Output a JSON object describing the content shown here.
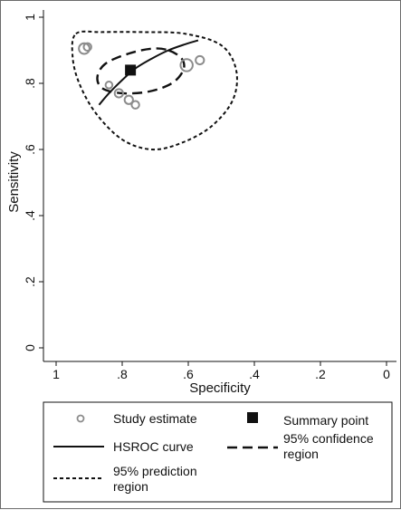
{
  "chart_data": {
    "type": "scatter",
    "xlabel": "Specificity",
    "ylabel": "Sensitivity",
    "xlim": [
      1,
      0
    ],
    "ylim": [
      0,
      1
    ],
    "x_ticks": [
      {
        "value": 1,
        "label": "1"
      },
      {
        "value": 0.8,
        "label": ".8"
      },
      {
        "value": 0.6,
        "label": ".6"
      },
      {
        "value": 0.4,
        "label": ".4"
      },
      {
        "value": 0.2,
        "label": ".2"
      },
      {
        "value": 0,
        "label": "0"
      }
    ],
    "y_ticks": [
      {
        "value": 0,
        "label": "0"
      },
      {
        "value": 0.2,
        "label": ".2"
      },
      {
        "value": 0.4,
        "label": ".4"
      },
      {
        "value": 0.6,
        "label": ".6"
      },
      {
        "value": 0.8,
        "label": ".8"
      },
      {
        "value": 1,
        "label": "1"
      }
    ],
    "grid": false,
    "study_estimates": [
      {
        "specificity": 0.915,
        "sensitivity": 0.905,
        "weight": 1.4
      },
      {
        "specificity": 0.905,
        "sensitivity": 0.91,
        "weight": 1.0
      },
      {
        "specificity": 0.84,
        "sensitivity": 0.795,
        "weight": 0.9
      },
      {
        "specificity": 0.81,
        "sensitivity": 0.77,
        "weight": 1.1
      },
      {
        "specificity": 0.78,
        "sensitivity": 0.75,
        "weight": 1.1
      },
      {
        "specificity": 0.76,
        "sensitivity": 0.735,
        "weight": 1.0
      },
      {
        "specificity": 0.605,
        "sensitivity": 0.855,
        "weight": 1.6
      },
      {
        "specificity": 0.565,
        "sensitivity": 0.87,
        "weight": 1.1
      }
    ],
    "summary_point": {
      "specificity": 0.775,
      "sensitivity": 0.84
    },
    "hsroc_curve": [
      {
        "specificity": 0.87,
        "sensitivity": 0.735
      },
      {
        "specificity": 0.84,
        "sensitivity": 0.77
      },
      {
        "specificity": 0.8,
        "sensitivity": 0.81
      },
      {
        "specificity": 0.76,
        "sensitivity": 0.845
      },
      {
        "specificity": 0.71,
        "sensitivity": 0.875
      },
      {
        "specificity": 0.66,
        "sensitivity": 0.9
      },
      {
        "specificity": 0.61,
        "sensitivity": 0.918
      },
      {
        "specificity": 0.57,
        "sensitivity": 0.93
      }
    ],
    "confidence_region": [
      {
        "specificity": 0.66,
        "sensitivity": 0.9
      },
      {
        "specificity": 0.62,
        "sensitivity": 0.875
      },
      {
        "specificity": 0.615,
        "sensitivity": 0.84
      },
      {
        "specificity": 0.65,
        "sensitivity": 0.8
      },
      {
        "specificity": 0.72,
        "sensitivity": 0.775
      },
      {
        "specificity": 0.8,
        "sensitivity": 0.77
      },
      {
        "specificity": 0.86,
        "sensitivity": 0.785
      },
      {
        "specificity": 0.875,
        "sensitivity": 0.82
      },
      {
        "specificity": 0.85,
        "sensitivity": 0.86
      },
      {
        "specificity": 0.78,
        "sensitivity": 0.89
      },
      {
        "specificity": 0.71,
        "sensitivity": 0.905
      }
    ],
    "prediction_region": [
      {
        "specificity": 0.94,
        "sensitivity": 0.95
      },
      {
        "specificity": 0.86,
        "sensitivity": 0.955
      },
      {
        "specificity": 0.74,
        "sensitivity": 0.955
      },
      {
        "specificity": 0.61,
        "sensitivity": 0.95
      },
      {
        "specificity": 0.5,
        "sensitivity": 0.915
      },
      {
        "specificity": 0.455,
        "sensitivity": 0.84
      },
      {
        "specificity": 0.465,
        "sensitivity": 0.75
      },
      {
        "specificity": 0.53,
        "sensitivity": 0.67
      },
      {
        "specificity": 0.62,
        "sensitivity": 0.62
      },
      {
        "specificity": 0.71,
        "sensitivity": 0.6
      },
      {
        "specificity": 0.8,
        "sensitivity": 0.63
      },
      {
        "specificity": 0.88,
        "sensitivity": 0.71
      },
      {
        "specificity": 0.93,
        "sensitivity": 0.8
      },
      {
        "specificity": 0.95,
        "sensitivity": 0.88
      }
    ],
    "legend": {
      "placement": "bottom",
      "entries": [
        {
          "key": "study",
          "label_lines": [
            "Study estimate"
          ]
        },
        {
          "key": "summary",
          "label_lines": [
            "Summary point"
          ]
        },
        {
          "key": "hsroc",
          "label_lines": [
            "HSROC curve"
          ]
        },
        {
          "key": "confidence",
          "label_lines": [
            "95% confidence",
            "region"
          ]
        },
        {
          "key": "prediction",
          "label_lines": [
            "95% prediction",
            "region"
          ]
        }
      ]
    }
  }
}
